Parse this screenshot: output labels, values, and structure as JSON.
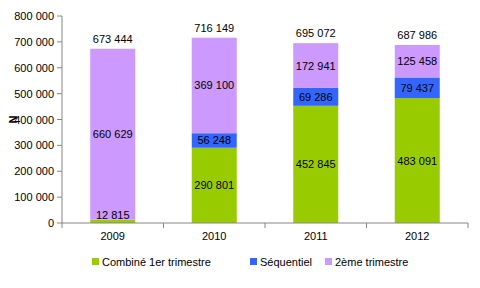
{
  "chart_data": {
    "type": "bar",
    "stacked": true,
    "data_labels": true,
    "grid": false,
    "legend": "bottom",
    "y_label": "N",
    "categories": [
      "2009",
      "2010",
      "2011",
      "2012"
    ],
    "series": [
      {
        "name": "Combiné 1er trimestre",
        "color": "#99cc00",
        "values": [
          12815,
          290801,
          452845,
          483091
        ],
        "value_labels": [
          "12 815",
          "290 801",
          "452 845",
          "483 091"
        ]
      },
      {
        "name": "Séquentiel",
        "color": "#3366ff",
        "values": [
          null,
          56248,
          69286,
          79437
        ],
        "value_labels": [
          null,
          "56 248",
          "69 286",
          "79 437"
        ]
      },
      {
        "name": "2ème trimestre",
        "color": "#cc99ff",
        "values": [
          660629,
          369100,
          172941,
          125458
        ],
        "value_labels": [
          "660 629",
          "369 100",
          "172 941",
          "125 458"
        ]
      }
    ],
    "totals": [
      673444,
      716149,
      695072,
      687986
    ],
    "total_labels": [
      "673 444",
      "716 149",
      "695 072",
      "687 986"
    ],
    "ylim": [
      0,
      800000
    ],
    "yticks": [
      0,
      {
        "value": 100000,
        "label": "100 000"
      },
      {
        "value": 200000,
        "label": "200 000"
      },
      {
        "value": 300000,
        "label": "300 000"
      },
      {
        "value": 400000,
        "label": "400 000"
      },
      {
        "value": 500000,
        "label": "500 000"
      },
      {
        "value": 600000,
        "label": "600 000"
      },
      {
        "value": 700000,
        "label": "700 000"
      },
      {
        "value": 800000,
        "label": "800 000"
      }
    ]
  }
}
